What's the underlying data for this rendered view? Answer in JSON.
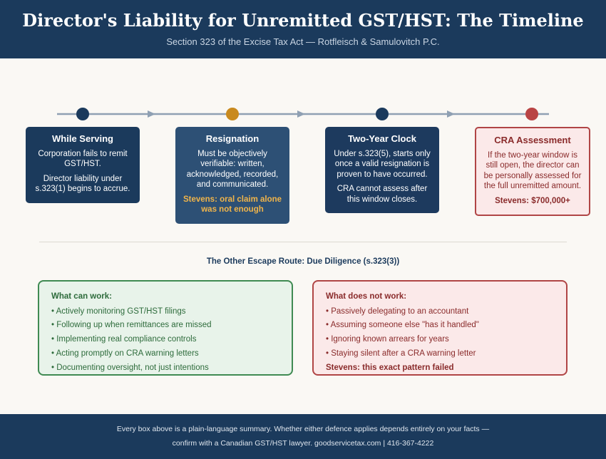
{
  "header": {
    "title": "Director's Liability for Unremitted GST/HST: The Timeline",
    "subtitle": "Section 323 of the Excise Tax Act — Rotfleisch & Samulovitch P.C."
  },
  "timeline": {
    "stages": [
      {
        "title": "While Serving",
        "paragraphs": [
          "Corporation fails to remit GST/HST.",
          "Director liability under s.323(1) begins to accrue."
        ]
      },
      {
        "title": "Resignation",
        "paragraphs": [
          "Must be objectively verifiable: written, acknowledged, recorded, and communicated."
        ],
        "highlight": "Stevens: oral claim alone was not enough"
      },
      {
        "title": "Two-Year Clock",
        "paragraphs": [
          "Under s.323(5), starts only once a valid resignation is proven to have occurred.",
          "CRA cannot assess after this window closes."
        ]
      },
      {
        "title": "CRA Assessment",
        "paragraphs": [
          "If the two-year window is still open, the director can be personally assessed for the full unremitted amount."
        ],
        "highlight": "Stevens: $700,000+"
      }
    ]
  },
  "section_title": "The Other Escape Route: Due Diligence (s.323(3))",
  "works": {
    "title": "What can work:",
    "items": [
      "• Actively monitoring GST/HST filings",
      "• Following up when remittances are missed",
      "• Implementing real compliance controls",
      "• Acting promptly on CRA warning letters",
      "• Documenting oversight, not just intentions"
    ]
  },
  "fails": {
    "title": "What does not work:",
    "items": [
      "• Passively delegating to an accountant",
      "• Assuming someone else \"has it handled\"",
      "• Ignoring known arrears for years",
      "• Staying silent after a CRA warning letter"
    ],
    "highlight": "Stevens: this exact pattern failed"
  },
  "footer": {
    "lines": [
      "Every box above is a plain-language summary. Whether either defence applies depends entirely on your facts —",
      "confirm with a Canadian GST/HST lawyer. goodservicetax.com | 416-367-4222"
    ]
  }
}
